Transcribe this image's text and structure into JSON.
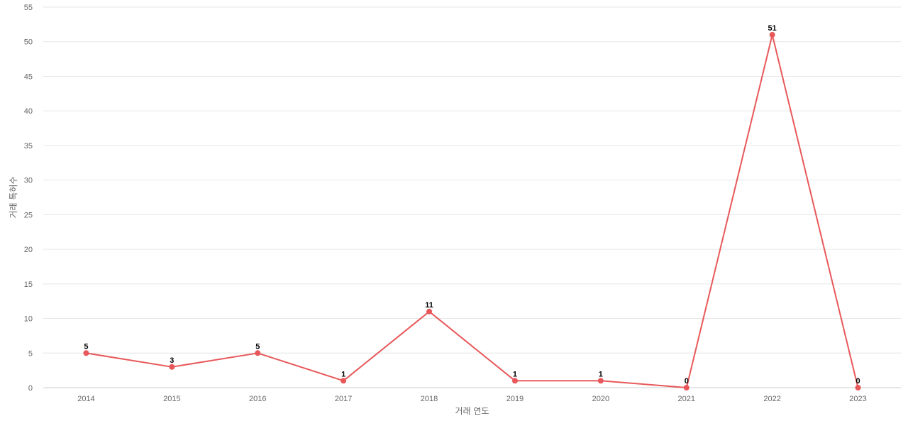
{
  "chart_data": {
    "type": "line",
    "title": "",
    "xlabel": "거래 연도",
    "ylabel": "거래 특허수",
    "categories": [
      "2014",
      "2015",
      "2016",
      "2017",
      "2018",
      "2019",
      "2020",
      "2021",
      "2022",
      "2023"
    ],
    "series": [
      {
        "values": [
          5,
          3,
          5,
          1,
          11,
          1,
          1,
          0,
          51,
          0
        ],
        "color": "#e8585a"
      }
    ],
    "ylim": [
      0,
      55
    ],
    "yticks": [
      0,
      5,
      10,
      15,
      20,
      25,
      30,
      35,
      40,
      45,
      50,
      55
    ],
    "grid": true,
    "data_labels": true,
    "legend": "none"
  }
}
